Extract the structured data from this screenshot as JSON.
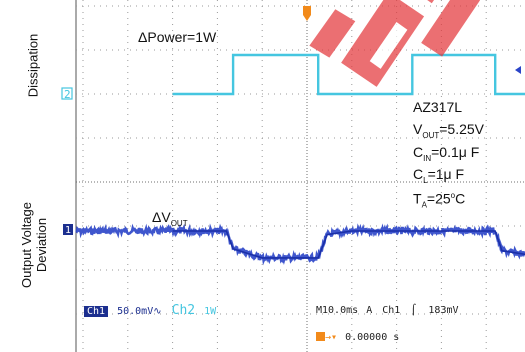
{
  "chart_data": {
    "type": "line",
    "ylabels": [
      "Dissipation",
      "Output Voltage\nDeviation"
    ],
    "annotations": {
      "delta_power": "ΔPower=1W",
      "delta_vout_main": "ΔV",
      "delta_vout_sub": "OUT",
      "conditions": {
        "part": "AZ317L",
        "vout_main": "V",
        "vout_sub": "OUT",
        "vout_val": "=5.25V",
        "cin_main": "C",
        "cin_sub": "IN",
        "cin_val": "=0.1μ  F",
        "cl_main": "C",
        "cl_sub": "L",
        "cl_val": "=1μ  F",
        "ta_main": "T",
        "ta_sub": "A",
        "ta_val": "=25",
        "ta_sup": "o",
        "ta_unit": "C"
      }
    },
    "scope": {
      "ch1_label": "Ch1",
      "ch1_scale": "50.0mV",
      "ch1_coupling": "∿",
      "ch2_label": "Ch2",
      "ch2_scale": "1W",
      "timebase": "M10.0ms",
      "trigger_mode": "A",
      "trigger_source": "Ch1",
      "trigger_slope": "⌠",
      "trigger_level": "183mV",
      "trigger_position": "0.00000 s",
      "marker_ch1": "1",
      "marker_ch2": "2"
    },
    "grid": true,
    "time_divisions": 10,
    "time_per_div_ms": 10,
    "series": [
      {
        "channel": "Ch2",
        "color": "#45c6e0",
        "description_levels": [
          "low",
          "high"
        ],
        "time_ms": [
          -30,
          -16.5,
          -16.5,
          2.5,
          2.5,
          23.5,
          23.5,
          42,
          42,
          50
        ],
        "power_W": [
          0,
          0,
          1,
          1,
          0,
          0,
          1,
          1,
          0,
          0
        ]
      },
      {
        "channel": "Ch1",
        "color": "#2a44c8",
        "time_ms": [
          -30,
          -20,
          -18,
          -16.5,
          -10,
          0,
          2.5,
          4.5,
          10,
          20,
          22,
          23.5,
          30,
          40,
          42,
          43.5,
          50
        ],
        "deviation_mV": [
          0,
          0,
          0,
          -20,
          -30,
          -30,
          -30,
          -4,
          0,
          0,
          0,
          0,
          0,
          0,
          0,
          -22,
          -27
        ]
      }
    ]
  }
}
